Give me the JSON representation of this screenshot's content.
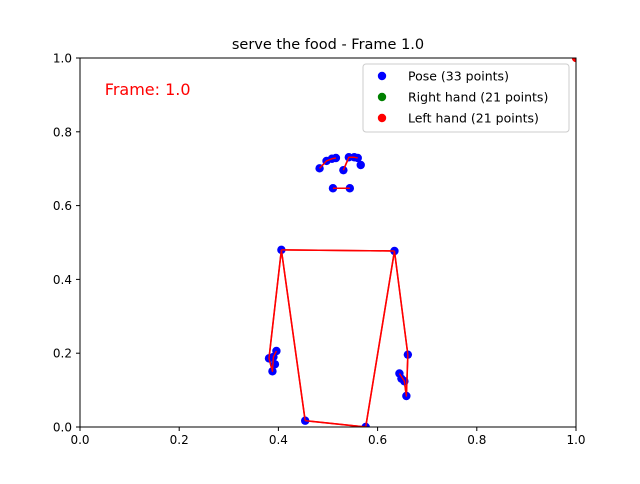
{
  "chart_data": {
    "type": "scatter",
    "title": "serve the food - Frame 1.0",
    "xlabel": "",
    "ylabel": "",
    "xlim": [
      0.0,
      1.0
    ],
    "ylim": [
      0.0,
      1.0
    ],
    "x_ticks": [
      "0.0",
      "0.2",
      "0.4",
      "0.6",
      "0.8",
      "1.0"
    ],
    "y_ticks": [
      "0.0",
      "0.2",
      "0.4",
      "0.6",
      "0.8",
      "1.0"
    ],
    "x_tick_values": [
      0.0,
      0.2,
      0.4,
      0.6,
      0.8,
      1.0
    ],
    "y_tick_values": [
      0.0,
      0.2,
      0.4,
      0.6,
      0.8,
      1.0
    ],
    "grid": false,
    "legend_position": "top-right",
    "annotation": {
      "text": "Frame: 1.0",
      "color": "#ff0000"
    },
    "series": [
      {
        "name": "Pose (33 points)",
        "color": "#0000ff",
        "points": [
          [
            0.483,
            0.701
          ],
          [
            0.497,
            0.721
          ],
          [
            0.508,
            0.727
          ],
          [
            0.516,
            0.729
          ],
          [
            0.531,
            0.696
          ],
          [
            0.542,
            0.731
          ],
          [
            0.553,
            0.731
          ],
          [
            0.56,
            0.729
          ],
          [
            0.566,
            0.71
          ],
          [
            0.51,
            0.647
          ],
          [
            0.544,
            0.647
          ],
          [
            0.406,
            0.48
          ],
          [
            0.634,
            0.477
          ],
          [
            0.381,
            0.186
          ],
          [
            0.388,
            0.151
          ],
          [
            0.39,
            0.19
          ],
          [
            0.393,
            0.17
          ],
          [
            0.396,
            0.206
          ],
          [
            0.644,
            0.145
          ],
          [
            0.648,
            0.131
          ],
          [
            0.654,
            0.124
          ],
          [
            0.658,
            0.084
          ],
          [
            0.661,
            0.196
          ],
          [
            0.454,
            0.017
          ],
          [
            0.576,
            0.0
          ]
        ]
      },
      {
        "name": "Right hand (21 points)",
        "color": "#008000",
        "points": []
      },
      {
        "name": "Left hand (21 points)",
        "color": "#ff0000",
        "points": [
          [
            1.0,
            1.0
          ]
        ]
      }
    ],
    "connections": {
      "color": "#ff0000",
      "lines": [
        [
          [
            0.483,
            0.701
          ],
          [
            0.497,
            0.721
          ],
          [
            0.508,
            0.727
          ],
          [
            0.516,
            0.729
          ]
        ],
        [
          [
            0.531,
            0.696
          ],
          [
            0.542,
            0.731
          ],
          [
            0.553,
            0.731
          ],
          [
            0.56,
            0.729
          ]
        ],
        [
          [
            0.51,
            0.647
          ],
          [
            0.544,
            0.647
          ]
        ],
        [
          [
            0.406,
            0.48
          ],
          [
            0.634,
            0.477
          ]
        ],
        [
          [
            0.406,
            0.48
          ],
          [
            0.381,
            0.186
          ],
          [
            0.388,
            0.151
          ],
          [
            0.39,
            0.19
          ],
          [
            0.396,
            0.206
          ]
        ],
        [
          [
            0.634,
            0.477
          ],
          [
            0.661,
            0.196
          ],
          [
            0.658,
            0.084
          ],
          [
            0.654,
            0.124
          ],
          [
            0.644,
            0.145
          ]
        ],
        [
          [
            0.406,
            0.48
          ],
          [
            0.454,
            0.017
          ]
        ],
        [
          [
            0.634,
            0.477
          ],
          [
            0.576,
            0.0
          ]
        ],
        [
          [
            0.454,
            0.017
          ],
          [
            0.576,
            0.0
          ]
        ]
      ]
    }
  }
}
